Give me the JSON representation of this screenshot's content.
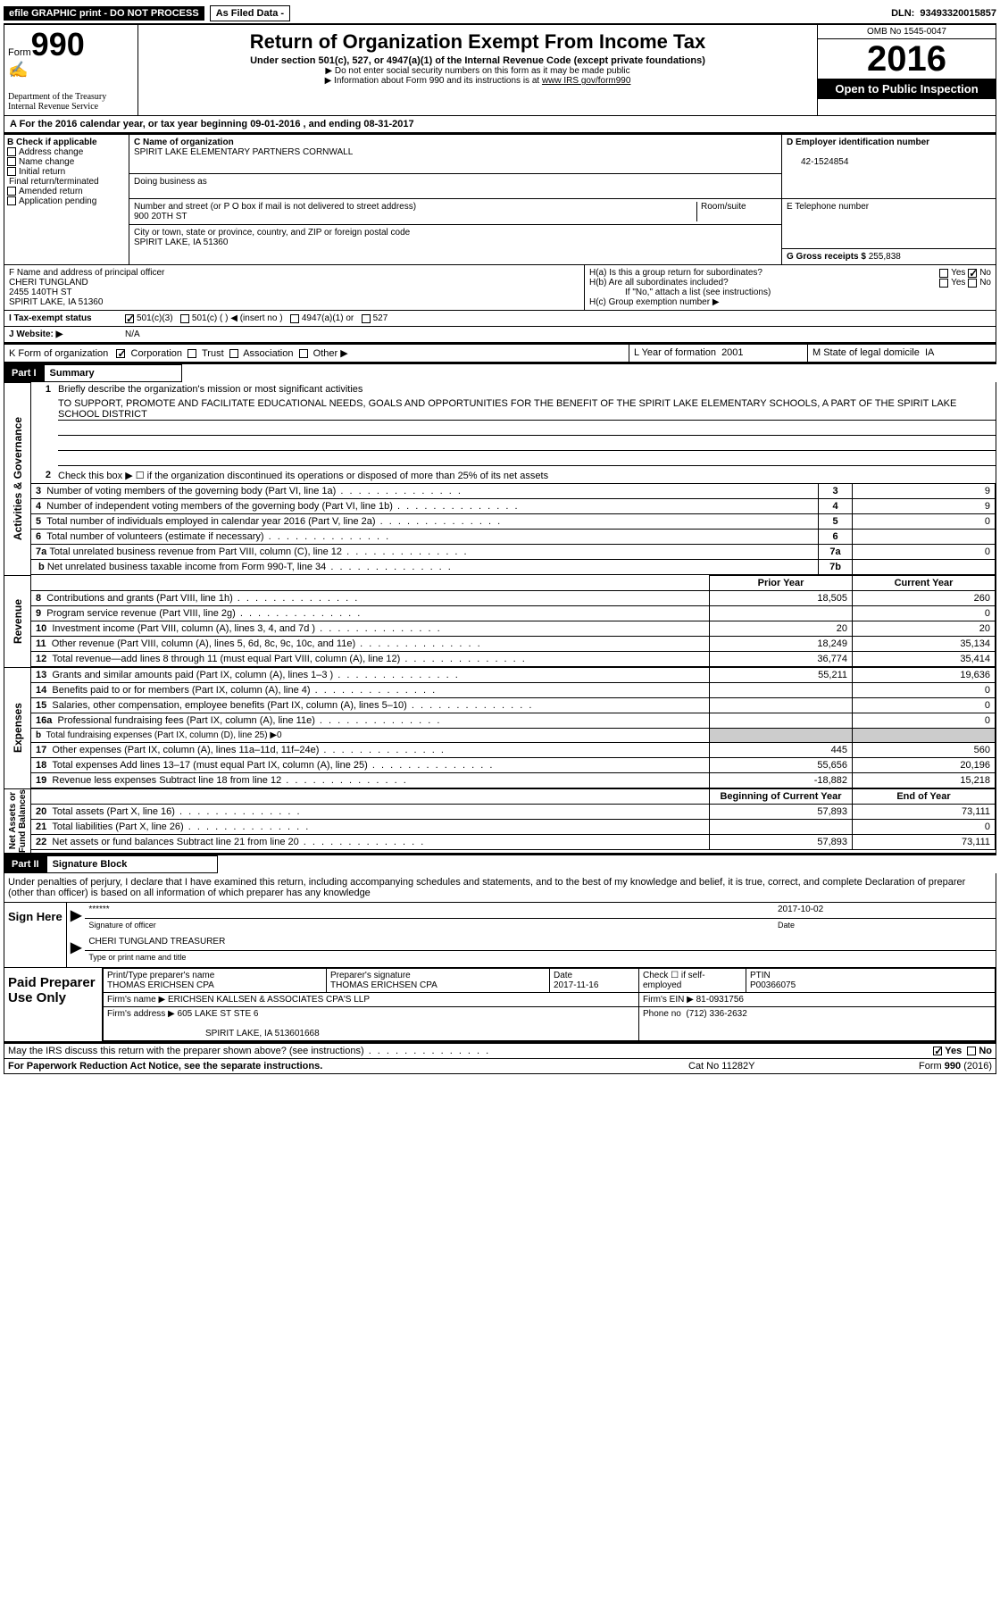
{
  "topbar": {
    "efile": "efile GRAPHIC print - DO NOT PROCESS",
    "asfiled": "As Filed Data -",
    "dln_label": "DLN:",
    "dln": "93493320015857"
  },
  "header": {
    "form_label": "Form",
    "form_no": "990",
    "dept": "Department of the Treasury",
    "irs": "Internal Revenue Service",
    "title": "Return of Organization Exempt From Income Tax",
    "sub": "Under section 501(c), 527, or 4947(a)(1) of the Internal Revenue Code (except private foundations)",
    "note1": "▶ Do not enter social security numbers on this form as it may be made public",
    "note2_pre": "▶ Information about Form 990 and its instructions is at ",
    "note2_link": "www IRS gov/form990",
    "omb": "OMB No  1545-0047",
    "year": "2016",
    "open": "Open to Public Inspection"
  },
  "line_a": "A   For the 2016 calendar year, or tax year beginning 09-01-2016    , and ending 08-31-2017",
  "col_b": {
    "title": "B Check if applicable",
    "opt1": "Address change",
    "opt2": "Name change",
    "opt3": "Initial return",
    "opt4": "Final return/terminated",
    "opt5": "Amended return",
    "opt6": "Application pending"
  },
  "col_c": {
    "c_label": "C Name of organization",
    "c_name": "SPIRIT LAKE ELEMENTARY PARTNERS CORNWALL",
    "dba_label": "Doing business as",
    "addr_label": "Number and street (or P O  box if mail is not delivered to street address)",
    "room_label": "Room/suite",
    "addr": "900 20TH ST",
    "city_label": "City or town, state or province, country, and ZIP or foreign postal code",
    "city": "SPIRIT LAKE, IA  51360"
  },
  "col_d": {
    "d_label": "D Employer identification number",
    "d_val": "42-1524854",
    "e_label": "E Telephone number",
    "g_label": "G Gross receipts $",
    "g_val": "255,838"
  },
  "f": {
    "label": "F  Name and address of principal officer",
    "name": "CHERI TUNGLAND",
    "addr1": "2455 140TH ST",
    "addr2": "SPIRIT LAKE, IA  51360"
  },
  "h": {
    "ha": "H(a)  Is this a group return for subordinates?",
    "hb": "H(b)  Are all subordinates included?",
    "hnote": "If \"No,\" attach a list  (see instructions)",
    "hc": "H(c)  Group exemption number ▶",
    "yes": "Yes",
    "no": "No"
  },
  "i": {
    "label": "I   Tax-exempt status",
    "o1": "501(c)(3)",
    "o2": "501(c) (   ) ◀ (insert no )",
    "o3": "4947(a)(1) or",
    "o4": "527"
  },
  "j": {
    "label": "J   Website: ▶",
    "val": "N/A"
  },
  "k": {
    "label": "K Form of organization",
    "o1": "Corporation",
    "o2": "Trust",
    "o3": "Association",
    "o4": "Other ▶"
  },
  "l": {
    "label": "L Year of formation",
    "val": "2001"
  },
  "m": {
    "label": "M State of legal domicile",
    "val": "IA"
  },
  "part1": {
    "num": "Part I",
    "title": "Summary"
  },
  "summary": {
    "l1_label": "Briefly describe the organization's mission or most significant activities",
    "l1_text": "TO SUPPORT, PROMOTE AND FACILITATE EDUCATIONAL NEEDS, GOALS AND OPPORTUNITIES FOR THE BENEFIT OF THE SPIRIT LAKE ELEMENTARY SCHOOLS, A PART OF THE SPIRIT LAKE SCHOOL DISTRICT",
    "l2": "Check this box ▶ ☐  if the organization discontinued its operations or disposed of more than 25% of its net assets",
    "l3": "Number of voting members of the governing body (Part VI, line 1a)",
    "l3v": "9",
    "l4": "Number of independent voting members of the governing body (Part VI, line 1b)",
    "l4v": "9",
    "l5": "Total number of individuals employed in calendar year 2016 (Part V, line 2a)",
    "l5v": "0",
    "l6": "Total number of volunteers (estimate if necessary)",
    "l6v": "",
    "l7a": "Total unrelated business revenue from Part VIII, column (C), line 12",
    "l7av": "0",
    "l7b": "Net unrelated business taxable income from Form 990-T, line 34",
    "l7bv": ""
  },
  "cols": {
    "prior": "Prior Year",
    "current": "Current Year",
    "boc": "Beginning of Current Year",
    "eoy": "End of Year"
  },
  "revenue": [
    {
      "n": "8",
      "t": "Contributions and grants (Part VIII, line 1h)",
      "p": "18,505",
      "c": "260"
    },
    {
      "n": "9",
      "t": "Program service revenue (Part VIII, line 2g)",
      "p": "",
      "c": "0"
    },
    {
      "n": "10",
      "t": "Investment income (Part VIII, column (A), lines 3, 4, and 7d )",
      "p": "20",
      "c": "20"
    },
    {
      "n": "11",
      "t": "Other revenue (Part VIII, column (A), lines 5, 6d, 8c, 9c, 10c, and 11e)",
      "p": "18,249",
      "c": "35,134"
    },
    {
      "n": "12",
      "t": "Total revenue—add lines 8 through 11 (must equal Part VIII, column (A), line 12)",
      "p": "36,774",
      "c": "35,414"
    }
  ],
  "expenses": [
    {
      "n": "13",
      "t": "Grants and similar amounts paid (Part IX, column (A), lines 1–3 )",
      "p": "55,211",
      "c": "19,636"
    },
    {
      "n": "14",
      "t": "Benefits paid to or for members (Part IX, column (A), line 4)",
      "p": "",
      "c": "0"
    },
    {
      "n": "15",
      "t": "Salaries, other compensation, employee benefits (Part IX, column (A), lines 5–10)",
      "p": "",
      "c": "0"
    },
    {
      "n": "16a",
      "t": "Professional fundraising fees (Part IX, column (A), line 11e)",
      "p": "",
      "c": "0"
    },
    {
      "n": "b",
      "t": "Total fundraising expenses (Part IX, column (D), line 25) ▶0",
      "p": "—",
      "c": "—"
    },
    {
      "n": "17",
      "t": "Other expenses (Part IX, column (A), lines 11a–11d, 11f–24e)",
      "p": "445",
      "c": "560"
    },
    {
      "n": "18",
      "t": "Total expenses  Add lines 13–17 (must equal Part IX, column (A), line 25)",
      "p": "55,656",
      "c": "20,196"
    },
    {
      "n": "19",
      "t": "Revenue less expenses  Subtract line 18 from line 12",
      "p": "-18,882",
      "c": "15,218"
    }
  ],
  "balances": [
    {
      "n": "20",
      "t": "Total assets (Part X, line 16)",
      "p": "57,893",
      "c": "73,111"
    },
    {
      "n": "21",
      "t": "Total liabilities (Part X, line 26)",
      "p": "",
      "c": "0"
    },
    {
      "n": "22",
      "t": "Net assets or fund balances  Subtract line 21 from line 20",
      "p": "57,893",
      "c": "73,111"
    }
  ],
  "vlabels": {
    "ag": "Activities & Governance",
    "rev": "Revenue",
    "exp": "Expenses",
    "nab": "Net Assets or\nFund Balances"
  },
  "part2": {
    "num": "Part II",
    "title": "Signature Block"
  },
  "sig": {
    "decl": "Under penalties of perjury, I declare that I have examined this return, including accompanying schedules and statements, and to the best of my knowledge and belief, it is true, correct, and complete  Declaration of preparer (other than officer) is based on all information of which preparer has any knowledge",
    "here": "Sign Here",
    "stars": "******",
    "sig_lbl": "Signature of officer",
    "date_lbl": "Date",
    "date": "2017-10-02",
    "name": "CHERI TUNGLAND TREASURER",
    "type_lbl": "Type or print name and title"
  },
  "prep": {
    "label": "Paid Preparer Use Only",
    "c1": "Print/Type preparer's name",
    "c1v": "THOMAS ERICHSEN CPA",
    "c2": "Preparer's signature",
    "c2v": "THOMAS ERICHSEN CPA",
    "c3": "Date",
    "c3v": "2017-11-16",
    "c4": "Check ☐ if self-employed",
    "c5": "PTIN",
    "c5v": "P00366075",
    "firm_lbl": "Firm's name    ▶",
    "firm": "ERICHSEN KALLSEN & ASSOCIATES CPA'S LLP",
    "ein_lbl": "Firm's EIN ▶",
    "ein": "81-0931756",
    "addr_lbl": "Firm's address ▶",
    "addr": "605 LAKE ST STE 6",
    "addr2": "SPIRIT LAKE, IA  513601668",
    "phone_lbl": "Phone no",
    "phone": "(712) 336-2632"
  },
  "discuss": "May the IRS discuss this return with the preparer shown above? (see instructions)",
  "footer": {
    "left": "For Paperwork Reduction Act Notice, see the separate instructions.",
    "mid": "Cat No  11282Y",
    "right": "Form 990 (2016)"
  }
}
